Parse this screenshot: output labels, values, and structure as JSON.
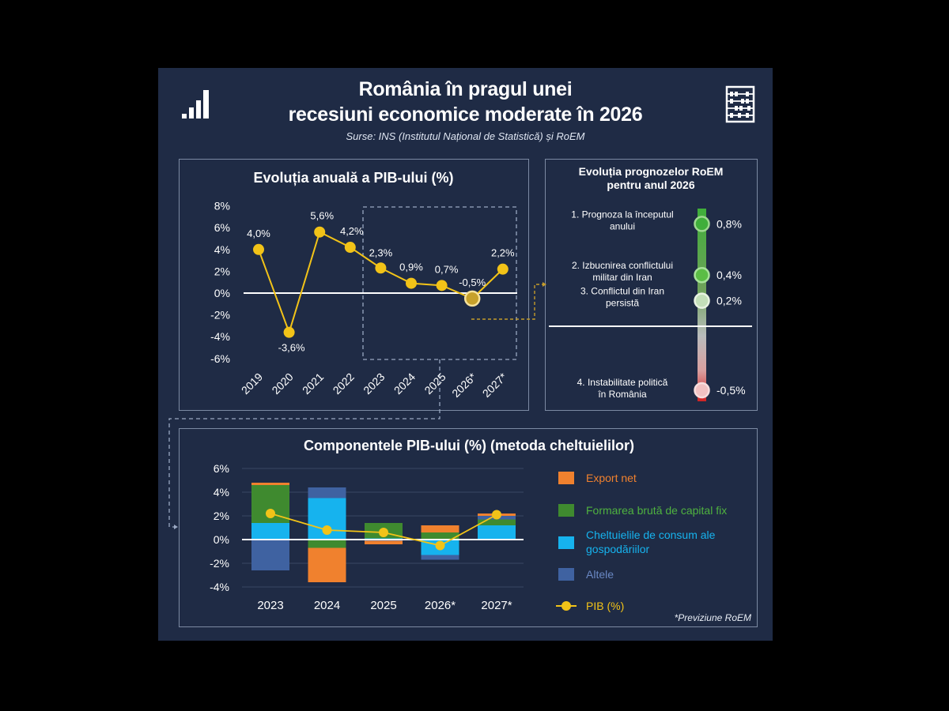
{
  "header": {
    "title_line1": "România în pragul unei",
    "title_line2": "recesiuni economice moderate în 2026",
    "sources": "Surse: INS (Institutul Național de Statistică) și RoEM"
  },
  "icons": [
    "bar-signal-icon",
    "abacus-icon"
  ],
  "colors": {
    "background": "#1f2b45",
    "pib_line": "#f2c318",
    "export_net": "#f0812e",
    "capital": "#3f8a2f",
    "consum": "#16b3ee",
    "altele": "#3f62a1",
    "positive": "#3fae3a",
    "negative": "#d33a3a"
  },
  "chart_data": [
    {
      "type": "line",
      "title": "Evoluția anuală a PIB-ului (%)",
      "categories": [
        "2019",
        "2020",
        "2021",
        "2022",
        "2023",
        "2024",
        "2025",
        "2026*",
        "2027*"
      ],
      "series": [
        {
          "values": [
            4.0,
            -3.6,
            5.6,
            4.2,
            2.3,
            0.9,
            0.7,
            -0.5,
            2.2
          ]
        }
      ],
      "data_labels": [
        "4,0%",
        "-3,6%",
        "5,6%",
        "4,2%",
        "2,3%",
        "0,9%",
        "0,7%",
        "-0,5%",
        "2,2%"
      ],
      "y_ticks": [
        "8%",
        "6%",
        "4%",
        "2%",
        "0%",
        "-2%",
        "-4%",
        "-6%"
      ],
      "ylim": [
        -6,
        8
      ],
      "highlight": "dashed box around 2023–2027*"
    },
    {
      "type": "scatter",
      "title_line1": "Evoluția prognozelor RoEM",
      "title_line2": "pentru anul 2026",
      "items": [
        {
          "label_line1": "1. Prognoza la începutul",
          "label_line2": "anului",
          "value": 0.8,
          "value_label": "0,8%"
        },
        {
          "label_line1": "2. Izbucnirea conflictului",
          "label_line2": "militar din Iran",
          "value": 0.4,
          "value_label": "0,4%"
        },
        {
          "label_line1": "3. Conflictul din Iran",
          "label_line2": "persistă",
          "value": 0.2,
          "value_label": "0,2%"
        },
        {
          "label_line1": "4. Instabilitate politică",
          "label_line2": "în România",
          "value": -0.5,
          "value_label": "-0,5%"
        }
      ]
    },
    {
      "type": "bar",
      "title": "Componentele PIB-ului (%) (metoda cheltuielilor)",
      "categories": [
        "2023",
        "2024",
        "2025",
        "2026*",
        "2027*"
      ],
      "y_ticks": [
        "6%",
        "4%",
        "2%",
        "0%",
        "-2%",
        "-4%"
      ],
      "ylim": [
        -4,
        6
      ],
      "series": [
        {
          "name": "Export net",
          "values": [
            0.2,
            -2.9,
            -0.3,
            0.6,
            0.2
          ]
        },
        {
          "name": "Formarea brută de capital fix",
          "values": [
            3.2,
            -0.7,
            1.3,
            0.6,
            0.5
          ]
        },
        {
          "name": "Cheltuielile de consum ale gospodăriilor",
          "values": [
            1.4,
            3.5,
            0.1,
            -1.3,
            1.2
          ]
        },
        {
          "name": "Altele",
          "values": [
            -2.6,
            0.9,
            -0.1,
            -0.4,
            0.3
          ]
        }
      ],
      "line_series": {
        "name": "PIB (%)",
        "values": [
          2.2,
          0.8,
          0.6,
          -0.5,
          2.1
        ]
      },
      "legend": [
        "Export net",
        "Formarea brută de capital fix",
        "Cheltuielile de consum ale",
        "gospodăriilor",
        "Altele",
        "PIB (%)"
      ],
      "legend_position": "right",
      "footnote": "*Previziune RoEM"
    }
  ]
}
